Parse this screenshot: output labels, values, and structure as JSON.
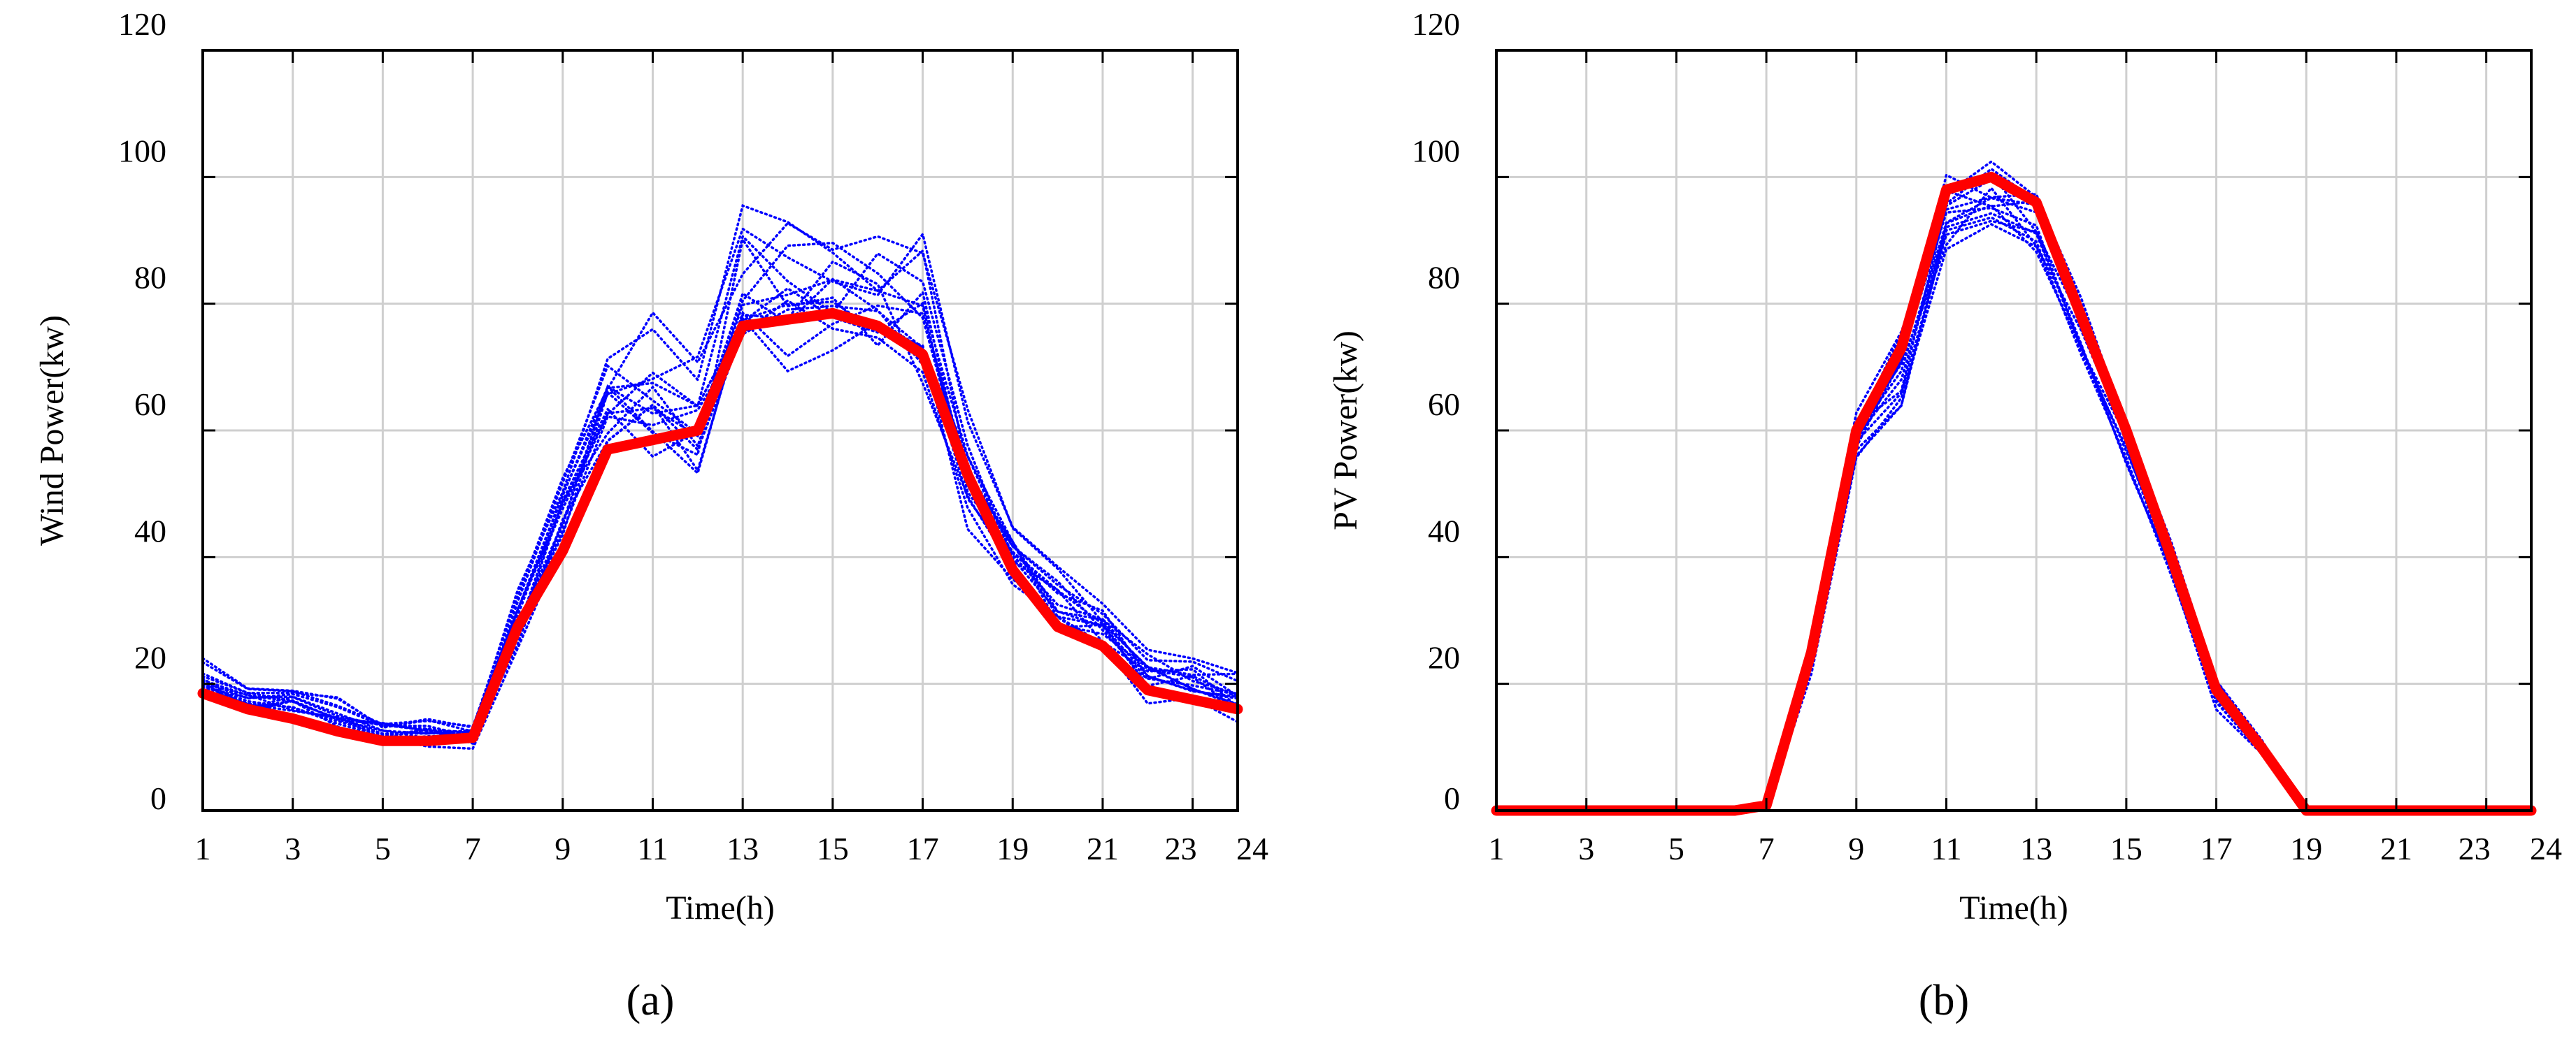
{
  "chart_data": [
    {
      "type": "line",
      "panel_label": "(a)",
      "xlabel": "Time(h)",
      "ylabel": "Wind Power(kw)",
      "xlim": [
        1,
        24
      ],
      "ylim": [
        0,
        120
      ],
      "xticks": [
        1,
        3,
        5,
        7,
        9,
        11,
        13,
        15,
        17,
        19,
        21,
        23,
        24
      ],
      "yticks": [
        0,
        20,
        40,
        60,
        80,
        100,
        120
      ],
      "grid": true,
      "x": [
        1,
        2,
        3,
        4,
        5,
        6,
        7,
        8,
        9,
        10,
        11,
        12,
        13,
        14,
        15,
        16,
        17,
        18,
        19,
        20,
        21,
        22,
        23,
        24
      ],
      "series": [
        {
          "role": "mean",
          "color": "#ff0000",
          "style": "solid-thick",
          "values": [
            18.5,
            16,
            14.5,
            12.5,
            11,
            11,
            11.5,
            29,
            41,
            57,
            58.5,
            60,
            76.5,
            77.5,
            78.5,
            76.5,
            72,
            53,
            38,
            29,
            26,
            19,
            17.5,
            16
          ]
        },
        {
          "role": "scenarios",
          "color": "#0000ff",
          "style": "dotted",
          "count": 15,
          "envelope_min": [
            13,
            12,
            11,
            10,
            8,
            8,
            8,
            20,
            34,
            45,
            42,
            40,
            54,
            56,
            55,
            58,
            52,
            34,
            28,
            21,
            19,
            13,
            12,
            11
          ],
          "envelope_max": [
            25,
            21,
            20,
            18,
            15,
            15,
            14,
            36,
            56,
            77,
            80,
            74,
            101,
            98,
            100,
            93,
            92,
            64,
            48,
            39,
            34,
            27,
            25,
            22
          ]
        }
      ]
    },
    {
      "type": "line",
      "panel_label": "(b)",
      "xlabel": "Time(h)",
      "ylabel": "PV Power(kw)",
      "xlim": [
        1,
        24
      ],
      "ylim": [
        0,
        120
      ],
      "xticks": [
        1,
        3,
        5,
        7,
        9,
        11,
        13,
        15,
        17,
        19,
        21,
        23,
        24
      ],
      "yticks": [
        0,
        20,
        40,
        60,
        80,
        100,
        120
      ],
      "grid": true,
      "x": [
        1,
        2,
        3,
        4,
        5,
        6,
        6.3,
        7,
        8,
        9,
        10,
        11,
        12,
        13,
        14,
        15,
        16,
        17,
        18,
        19,
        20,
        21,
        22,
        23,
        24
      ],
      "series": [
        {
          "role": "mean",
          "color": "#ff0000",
          "style": "solid-thick",
          "values": [
            0,
            0,
            0,
            0,
            0,
            0,
            0,
            0.8,
            25,
            60,
            73,
            98,
            100,
            96,
            78,
            60,
            40,
            19,
            10,
            0,
            0,
            0,
            0,
            0,
            0
          ]
        },
        {
          "role": "scenarios",
          "color": "#0000ff",
          "style": "dotted",
          "count": 15,
          "envelope_min": [
            0,
            0,
            0,
            0,
            0,
            0,
            0,
            0,
            21,
            54,
            60,
            85,
            87,
            84,
            68,
            53,
            35,
            15,
            8,
            0,
            0,
            0,
            0,
            0,
            0
          ],
          "envelope_max": [
            0,
            0,
            0,
            0,
            0,
            0,
            0,
            1.5,
            28,
            66,
            80,
            106,
            108,
            105,
            86,
            66,
            45,
            23,
            12,
            0,
            0,
            0,
            0,
            0,
            0
          ]
        }
      ]
    }
  ]
}
